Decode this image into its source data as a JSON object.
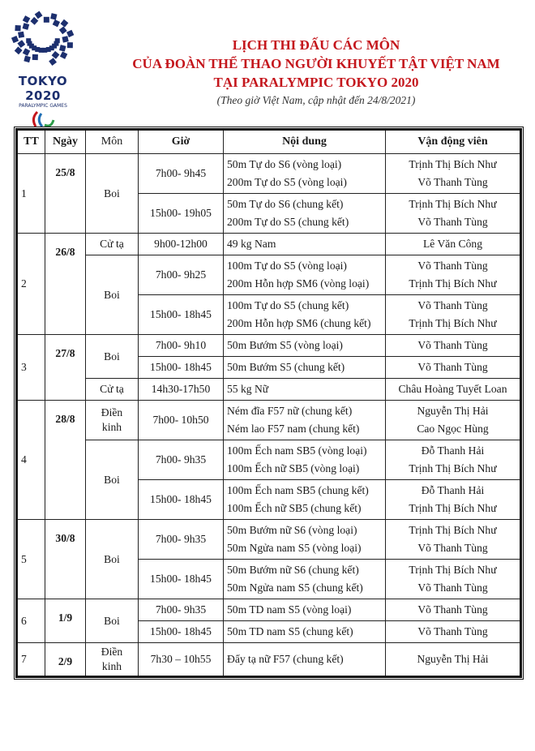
{
  "logo": {
    "brand": "TOKYO 2020",
    "sub": "PARALYMPIC GAMES",
    "colors": {
      "navy": "#1c2f6e",
      "red": "#c4161c",
      "blue": "#1f6fb5",
      "green": "#2e9d4a"
    }
  },
  "header": {
    "title_lines": [
      "LỊCH THI ĐẤU CÁC MÔN",
      "CỦA ĐOÀN THỂ THAO NGƯỜI KHUYẾT TẬT VIỆT NAM",
      "TẠI PARALYMPIC TOKYO 2020"
    ],
    "subtitle": "(Theo giờ Việt Nam, cập nhật đến 24/8/2021)",
    "title_color": "#c4161c"
  },
  "table": {
    "columns": [
      "TT",
      "Ngày",
      "Môn",
      "Giờ",
      "Nội dung",
      "Vận động viên"
    ],
    "groups": [
      {
        "tt": "1",
        "date": "25/8",
        "sports": [
          {
            "name": "Boi",
            "sessions": [
              {
                "time": "7h00- 9h45",
                "events": [
                  "50m Tự do S6 (vòng loại)",
                  "200m Tự do S5 (vòng loại)"
                ],
                "athletes": [
                  "Trịnh Thị Bích Như",
                  "Võ Thanh Tùng"
                ]
              },
              {
                "time": "15h00- 19h05",
                "events": [
                  "50m Tự do S6 (chung kết)",
                  "200m Tự do S5 (chung kết)"
                ],
                "athletes": [
                  "Trịnh Thị Bích Như",
                  "Võ Thanh Tùng"
                ]
              }
            ]
          }
        ]
      },
      {
        "tt": "2",
        "date": "26/8",
        "sports": [
          {
            "name": "Cử tạ",
            "sessions": [
              {
                "time": "9h00-12h00",
                "events": [
                  "49 kg Nam"
                ],
                "athletes": [
                  "Lê Văn Công"
                ]
              }
            ]
          },
          {
            "name": "Boi",
            "sessions": [
              {
                "time": "7h00- 9h25",
                "events": [
                  "100m Tự do S5 (vòng loại)",
                  "200m Hỗn hợp  SM6 (vòng loại)"
                ],
                "athletes": [
                  "Võ Thanh Tùng",
                  "Trịnh Thị Bích Như"
                ]
              },
              {
                "time": "15h00- 18h45",
                "events": [
                  "100m Tự do S5 (chung kết)",
                  "200m Hỗn hợp SM6 (chung kết)"
                ],
                "athletes": [
                  "Võ Thanh Tùng",
                  "Trịnh Thị Bích Như"
                ]
              }
            ]
          }
        ]
      },
      {
        "tt": "3",
        "date": "27/8",
        "sports": [
          {
            "name": "Boi",
            "sessions": [
              {
                "time": "7h00- 9h10",
                "events": [
                  "50m Bướm S5 (vòng loại)"
                ],
                "athletes": [
                  "Võ Thanh Tùng"
                ]
              },
              {
                "time": "15h00- 18h45",
                "events": [
                  "50m Bướm S5 (chung kết)"
                ],
                "athletes": [
                  "Võ Thanh Tùng"
                ]
              }
            ]
          },
          {
            "name": "Cử tạ",
            "sessions": [
              {
                "time": "14h30-17h50",
                "events": [
                  "55 kg Nữ"
                ],
                "athletes": [
                  "Châu Hoàng Tuyết Loan"
                ]
              }
            ]
          }
        ]
      },
      {
        "tt": "4",
        "date": "28/8",
        "sports": [
          {
            "name": "Điền kinh",
            "sessions": [
              {
                "time": "7h00- 10h50",
                "events": [
                  "Ném đĩa F57 nữ (chung kết)",
                  "Ném lao F57 nam (chung kết)"
                ],
                "athletes": [
                  "Nguyễn Thị Hải",
                  "Cao Ngọc Hùng"
                ]
              }
            ]
          },
          {
            "name": "Boi",
            "sessions": [
              {
                "time": "7h00- 9h35",
                "events": [
                  "100m Ếch nam SB5 (vòng loại)",
                  "100m Ếch nữ SB5 (vòng loại)"
                ],
                "athletes": [
                  "Đỗ Thanh Hải",
                  "Trịnh Thị Bích Như"
                ]
              },
              {
                "time": "15h00- 18h45",
                "events": [
                  "100m Ếch nam SB5 (chung kết)",
                  "100m Ếch nữ SB5 (chung kết)"
                ],
                "athletes": [
                  "Đỗ Thanh Hải",
                  "Trịnh Thị Bích Như"
                ]
              }
            ]
          }
        ]
      },
      {
        "tt": "5",
        "date": "30/8",
        "sports": [
          {
            "name": "Boi",
            "sessions": [
              {
                "time": "7h00- 9h35",
                "events": [
                  "50m Bướm nữ S6 (vòng loại)",
                  "50m Ngửa nam S5 (vòng loại)"
                ],
                "athletes": [
                  "Trịnh Thị Bích Như",
                  "Võ Thanh Tùng"
                ]
              },
              {
                "time": "15h00- 18h45",
                "events": [
                  "50m Bướm nữ S6 (chung kết)",
                  "50m Ngửa nam S5 (chung kết)"
                ],
                "athletes": [
                  "Trịnh Thị Bích Như",
                  "Võ Thanh Tùng"
                ]
              }
            ]
          }
        ]
      },
      {
        "tt": "6",
        "date": "1/9",
        "sports": [
          {
            "name": "Boi",
            "sessions": [
              {
                "time": "7h00- 9h35",
                "events": [
                  "50m TD nam S5 (vòng loại)"
                ],
                "athletes": [
                  "Võ Thanh Tùng"
                ]
              },
              {
                "time": "15h00- 18h45",
                "events": [
                  "50m TD nam S5 (chung kết)"
                ],
                "athletes": [
                  "Võ Thanh Tùng"
                ]
              }
            ]
          }
        ]
      },
      {
        "tt": "7",
        "date": "2/9",
        "sports": [
          {
            "name": "Điền kinh",
            "sessions": [
              {
                "time": "7h30 – 10h55",
                "events": [
                  "Đẩy tạ nữ F57 (chung kết)"
                ],
                "athletes": [
                  "Nguyễn Thị Hải"
                ]
              }
            ]
          }
        ]
      }
    ]
  }
}
